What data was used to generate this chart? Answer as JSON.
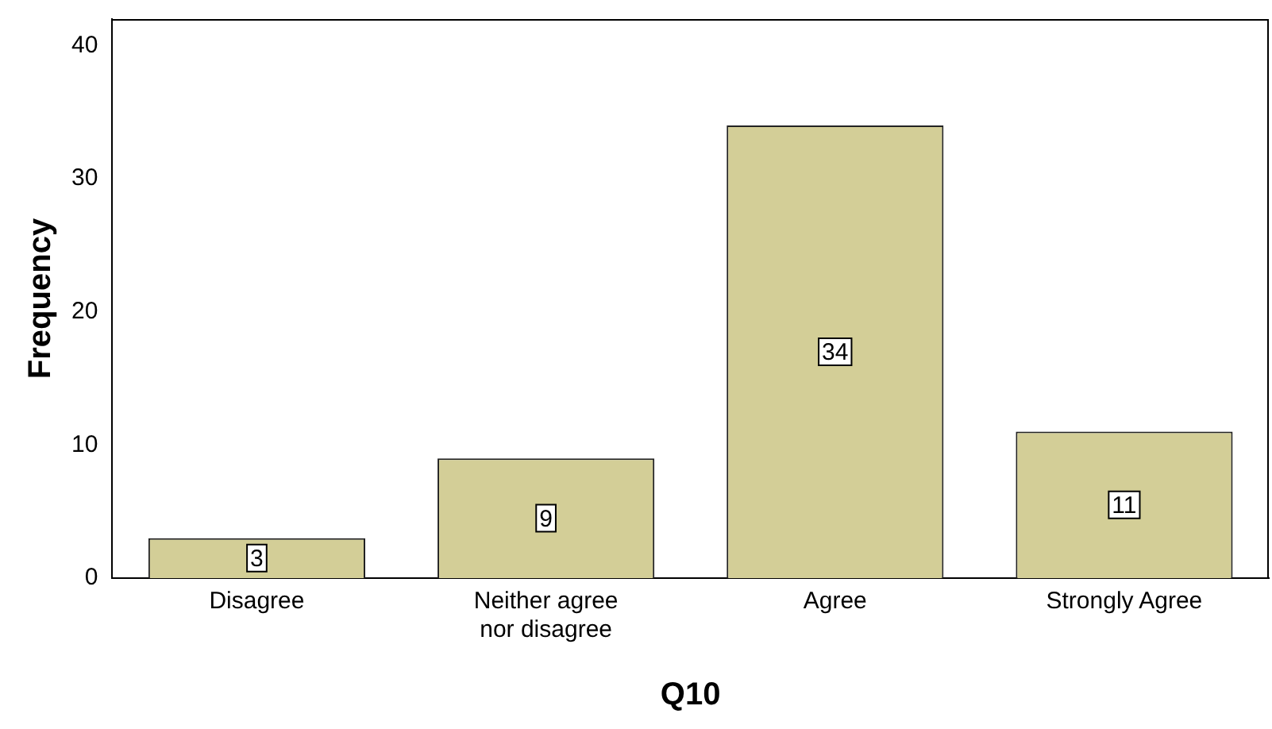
{
  "chart_data": {
    "type": "bar",
    "xlabel": "Q10",
    "ylabel": "Frequency",
    "categories": [
      "Disagree",
      "Neither agree nor disagree",
      "Agree",
      "Strongly Agree"
    ],
    "values": [
      3,
      9,
      34,
      11
    ],
    "color": "#d3ce97",
    "ylim": [
      0,
      42
    ],
    "yticks": [
      0,
      10,
      20,
      30,
      40
    ],
    "grid": false,
    "legend": false,
    "data_labels": true
  }
}
